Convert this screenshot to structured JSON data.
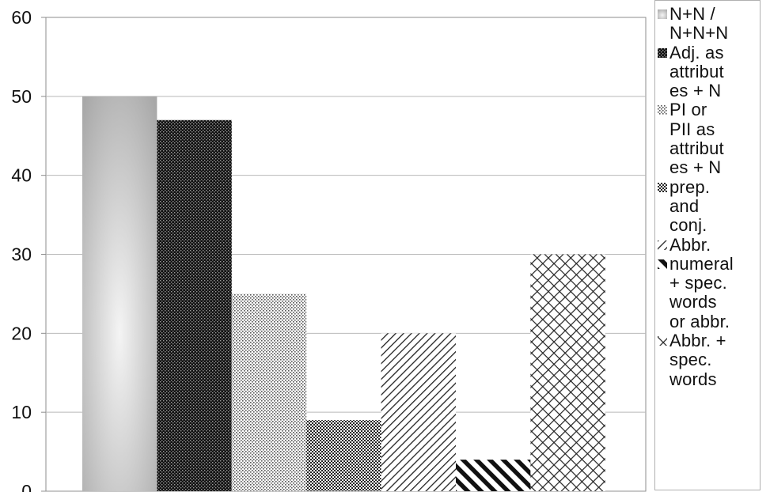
{
  "chart_data": {
    "type": "bar",
    "title": "",
    "xlabel": "",
    "ylabel": "",
    "ylim": [
      0,
      60
    ],
    "yticks": [
      0,
      10,
      20,
      30,
      40,
      50,
      60
    ],
    "grid": true,
    "legend_position": "right",
    "categories": [
      "N+N / N+N+N",
      "Adj. as attributes + N",
      "PI or PII as attributes + N",
      "prep. and conj.",
      "Abbr.",
      "numeral + spec. words or abbr.",
      "Abbr. + spec. words"
    ],
    "series": [
      {
        "name": "N+N / N+N+N",
        "value": 50,
        "pattern": "gradient"
      },
      {
        "name": "Adj. as attributes + N",
        "value": 47,
        "pattern": "dense-dots"
      },
      {
        "name": "PI or PII as attributes + N",
        "value": 25,
        "pattern": "sparse-dots"
      },
      {
        "name": "prep. and conj.",
        "value": 9,
        "pattern": "checker"
      },
      {
        "name": "Abbr.",
        "value": 20,
        "pattern": "diagonal-light"
      },
      {
        "name": "numeral + spec. words or abbr.",
        "value": 4,
        "pattern": "diagonal-bold"
      },
      {
        "name": "Abbr. + spec. words",
        "value": 30,
        "pattern": "crosshatch"
      }
    ]
  },
  "legend": {
    "items": [
      {
        "lines": [
          "N+N /",
          "N+N+N"
        ],
        "pattern": "gradient"
      },
      {
        "lines": [
          "Adj. as",
          "attribut",
          "es + N"
        ],
        "pattern": "dense-dots"
      },
      {
        "lines": [
          "PI or",
          "PII as",
          "attribut",
          "es + N"
        ],
        "pattern": "sparse-dots"
      },
      {
        "lines": [
          "prep.",
          "and",
          "conj."
        ],
        "pattern": "checker"
      },
      {
        "lines": [
          "Abbr."
        ],
        "pattern": "diagonal-light"
      },
      {
        "lines": [
          "numeral",
          "+ spec.",
          "words",
          "or abbr."
        ],
        "pattern": "diagonal-bold"
      },
      {
        "lines": [
          "Abbr. +",
          "spec.",
          "words"
        ],
        "pattern": "crosshatch"
      }
    ]
  },
  "colors": {
    "grid": "#b9b9b9",
    "axis": "#8c8c8c",
    "text": "#111111",
    "bar_dark": "#111111",
    "bar_gradient_center": "#f4f4f4",
    "bar_gradient_edge": "#a8a8a8"
  }
}
